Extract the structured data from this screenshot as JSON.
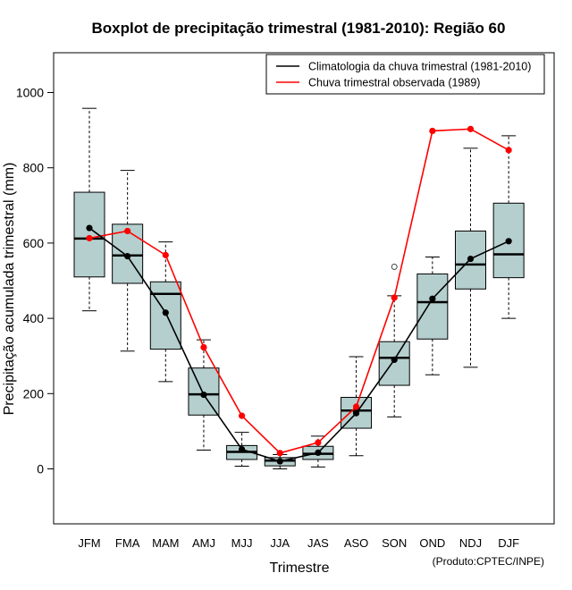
{
  "chart_data": {
    "type": "boxplot",
    "title": "Boxplot de precipitação trimestral (1981-2010): Região 60",
    "xlabel": "Trimestre",
    "ylabel": "Precipitação acumulada trimestral (mm)",
    "ylim": [
      -150,
      1100
    ],
    "yticks": [
      0,
      200,
      400,
      600,
      800,
      1000
    ],
    "categories": [
      "JFM",
      "FMA",
      "MAM",
      "AMJ",
      "MJJ",
      "JJA",
      "JAS",
      "ASO",
      "SON",
      "OND",
      "NDJ",
      "DJF"
    ],
    "boxes": [
      {
        "whisker_low": 420,
        "q1": 510,
        "median": 612,
        "q3": 735,
        "whisker_high": 958,
        "outliers": []
      },
      {
        "whisker_low": 313,
        "q1": 493,
        "median": 567,
        "q3": 650,
        "whisker_high": 793,
        "outliers": []
      },
      {
        "whisker_low": 232,
        "q1": 318,
        "median": 465,
        "q3": 497,
        "whisker_high": 603,
        "outliers": []
      },
      {
        "whisker_low": 50,
        "q1": 143,
        "median": 198,
        "q3": 268,
        "whisker_high": 343,
        "outliers": []
      },
      {
        "whisker_low": 7,
        "q1": 25,
        "median": 45,
        "q3": 62,
        "whisker_high": 97,
        "outliers": []
      },
      {
        "whisker_low": 0,
        "q1": 8,
        "median": 22,
        "q3": 30,
        "whisker_high": 38,
        "outliers": []
      },
      {
        "whisker_low": 5,
        "q1": 25,
        "median": 40,
        "q3": 60,
        "whisker_high": 87,
        "outliers": []
      },
      {
        "whisker_low": 35,
        "q1": 108,
        "median": 155,
        "q3": 190,
        "whisker_high": 298,
        "outliers": []
      },
      {
        "whisker_low": 138,
        "q1": 222,
        "median": 295,
        "q3": 338,
        "whisker_high": 460,
        "outliers": [
          537
        ]
      },
      {
        "whisker_low": 250,
        "q1": 345,
        "median": 443,
        "q3": 518,
        "whisker_high": 563,
        "outliers": []
      },
      {
        "whisker_low": 270,
        "q1": 478,
        "median": 543,
        "q3": 632,
        "whisker_high": 852,
        "outliers": []
      },
      {
        "whisker_low": 400,
        "q1": 508,
        "median": 570,
        "q3": 706,
        "whisker_high": 885,
        "outliers": []
      }
    ],
    "series": [
      {
        "name": "Climatologia da chuva trimestral (1981-2010)",
        "color": "#000000",
        "values": [
          640,
          565,
          415,
          197,
          52,
          20,
          43,
          148,
          290,
          452,
          558,
          605
        ]
      },
      {
        "name": "Chuva trimestral observada (1989)",
        "color": "#ff0000",
        "values": [
          613,
          632,
          568,
          323,
          141,
          42,
          70,
          165,
          455,
          898,
          903,
          847
        ]
      }
    ],
    "legend_position": "top-right",
    "box_color": "#b4cfce",
    "credit": "(Produto:CPTEC/INPE)"
  }
}
